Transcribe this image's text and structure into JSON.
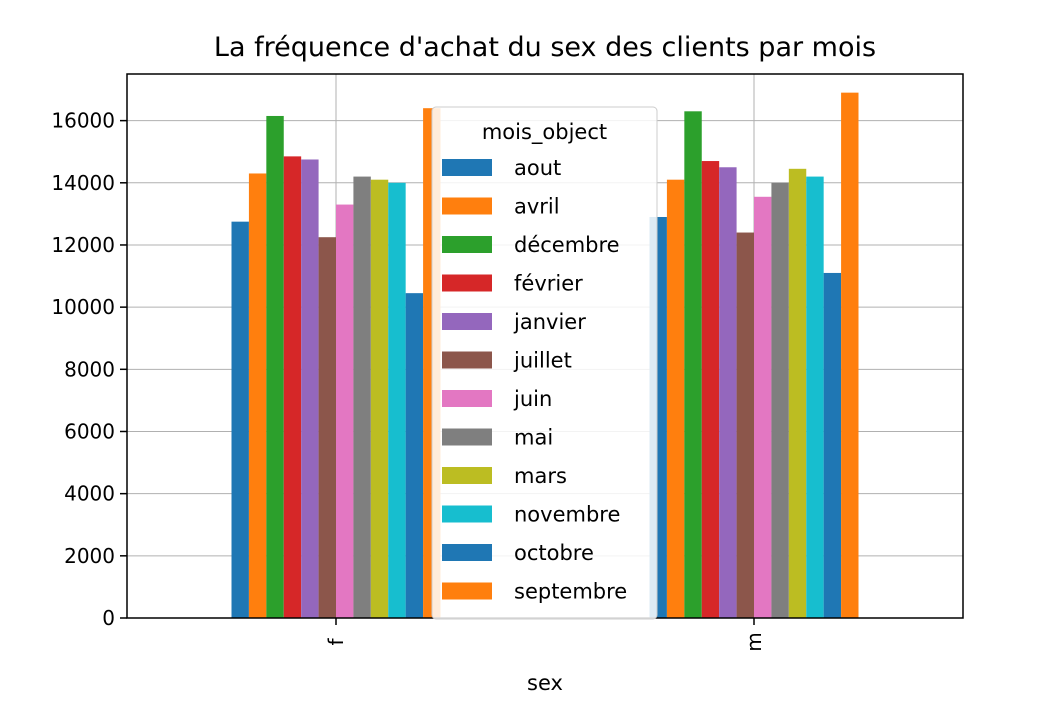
{
  "chart_data": {
    "type": "bar",
    "title": "La fréquence d'achat du sex des clients par mois",
    "xlabel": "sex",
    "ylabel": "",
    "categories": [
      "f",
      "m"
    ],
    "ylim": [
      0,
      17500
    ],
    "yticks": [
      0,
      2000,
      4000,
      6000,
      8000,
      10000,
      12000,
      14000,
      16000
    ],
    "grid": true,
    "legend": {
      "title": "mois_object",
      "placement": "upper-center"
    },
    "series": [
      {
        "name": "aout",
        "color": "#1f77b4",
        "values": [
          12750,
          12900
        ]
      },
      {
        "name": "avril",
        "color": "#ff7f0e",
        "values": [
          14300,
          14100
        ]
      },
      {
        "name": "décembre",
        "color": "#2ca02c",
        "values": [
          16150,
          16300
        ]
      },
      {
        "name": "février",
        "color": "#d62728",
        "values": [
          14850,
          14700
        ]
      },
      {
        "name": "janvier",
        "color": "#9467bd",
        "values": [
          14750,
          14500
        ]
      },
      {
        "name": "juillet",
        "color": "#8c564b",
        "values": [
          12250,
          12400
        ]
      },
      {
        "name": "juin",
        "color": "#e377c2",
        "values": [
          13300,
          13550
        ]
      },
      {
        "name": "mai",
        "color": "#7f7f7f",
        "values": [
          14200,
          14000
        ]
      },
      {
        "name": "mars",
        "color": "#bcbd22",
        "values": [
          14100,
          14450
        ]
      },
      {
        "name": "novembre",
        "color": "#17becf",
        "values": [
          14000,
          14200
        ]
      },
      {
        "name": "octobre",
        "color": "#1f77b4",
        "values": [
          10450,
          11100
        ]
      },
      {
        "name": "septembre",
        "color": "#ff7f0e",
        "values": [
          16400,
          16900
        ]
      }
    ]
  }
}
